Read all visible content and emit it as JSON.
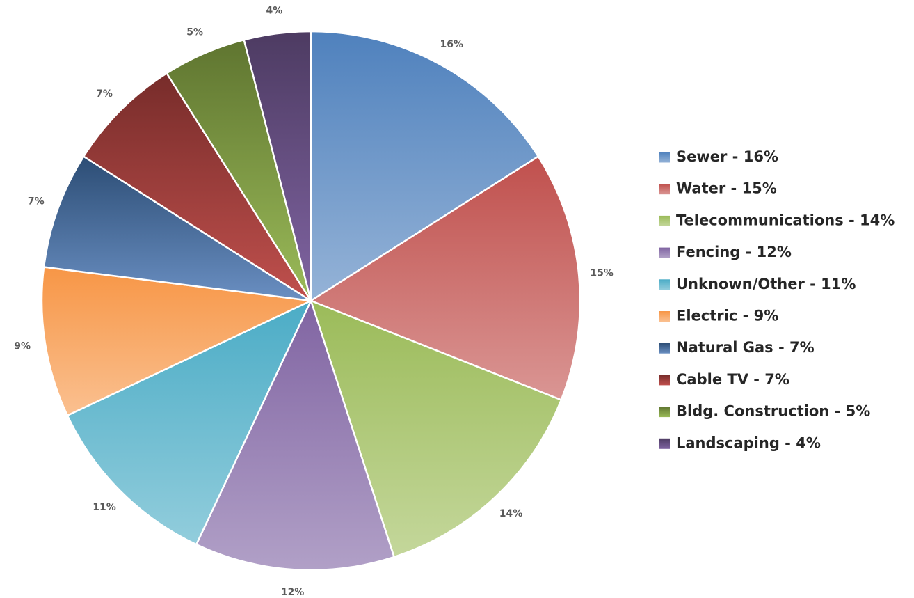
{
  "chart_data": {
    "type": "pie",
    "categories": [
      "Sewer",
      "Water",
      "Telecommunications",
      "Fencing",
      "Unknown/Other",
      "Electric",
      "Natural Gas",
      "Cable TV",
      "Bldg. Construction",
      "Landscaping"
    ],
    "values": [
      16,
      15,
      14,
      12,
      11,
      9,
      7,
      7,
      5,
      4
    ],
    "unit": "%",
    "data_labels": [
      "16%",
      "15%",
      "14%",
      "12%",
      "11%",
      "9%",
      "7%",
      "7%",
      "5%",
      "4%"
    ],
    "legend_entries": [
      "Sewer - 16%",
      "Water - 15%",
      "Telecommunications - 14%",
      "Fencing - 12%",
      "Unknown/Other - 11%",
      "Electric - 9%",
      "Natural Gas - 7%",
      "Cable TV - 7%",
      "Bldg. Construction - 5%",
      "Landscaping - 4%"
    ],
    "legend_position": "right",
    "colors": [
      "#4f81bd",
      "#c0504d",
      "#9bbb59",
      "#8064a2",
      "#4bacc6",
      "#f79646",
      "#2c4d75",
      "#772c2a",
      "#5f7530",
      "#4d3b62"
    ],
    "colors_light": [
      "#95b3d7",
      "#da9694",
      "#c4d79b",
      "#b1a0c7",
      "#92cddc",
      "#fac090",
      "#6a8fc2",
      "#c0504d",
      "#9bbb59",
      "#8064a2"
    ],
    "start_angle_deg": 0,
    "direction": "clockwise",
    "title": ""
  }
}
